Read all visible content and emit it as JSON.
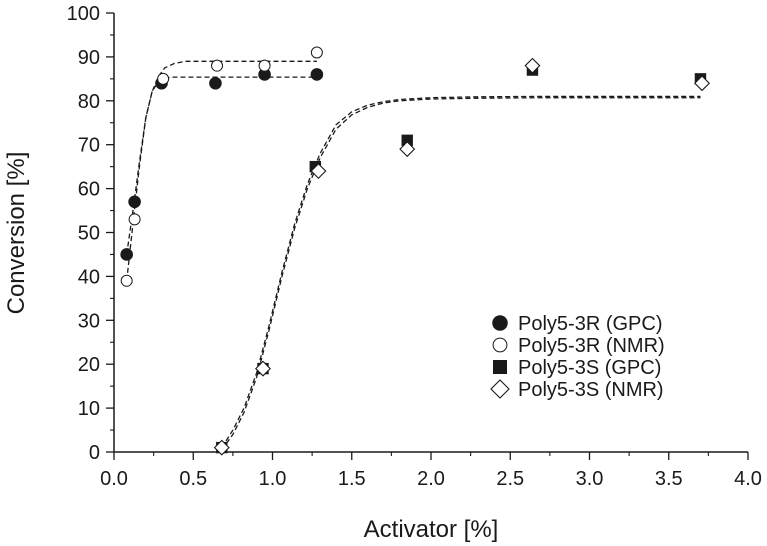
{
  "chart_data": {
    "type": "scatter",
    "title": "",
    "xlabel": "Activator [%]",
    "ylabel": "Conversion [%]",
    "xlim": [
      0.0,
      4.0
    ],
    "ylim": [
      0,
      100
    ],
    "xticks": [
      "0.0",
      "0.5",
      "1.0",
      "1.5",
      "2.0",
      "2.5",
      "3.0",
      "3.5",
      "4.0"
    ],
    "yticks": [
      "0",
      "10",
      "20",
      "30",
      "40",
      "50",
      "60",
      "70",
      "80",
      "90",
      "100"
    ],
    "grid": false,
    "legend_position": "bottom-right",
    "series": [
      {
        "name": "Poly5-3R (GPC)",
        "marker": "filled-circle",
        "x": [
          0.08,
          0.13,
          0.3,
          0.64,
          0.95,
          1.28
        ],
        "y": [
          45,
          57,
          84,
          84,
          86,
          86
        ]
      },
      {
        "name": "Poly5-3R (NMR)",
        "marker": "open-circle",
        "x": [
          0.08,
          0.13,
          0.31,
          0.65,
          0.95,
          1.28
        ],
        "y": [
          39,
          53,
          85,
          88,
          88,
          91
        ]
      },
      {
        "name": "Poly5-3S (GPC)",
        "marker": "filled-square",
        "x": [
          0.68,
          0.94,
          1.27,
          1.85,
          2.64,
          3.7
        ],
        "y": [
          1,
          19,
          65,
          71,
          87,
          85
        ]
      },
      {
        "name": "Poly5-3S (NMR)",
        "marker": "open-diamond",
        "x": [
          0.68,
          0.94,
          1.29,
          1.85,
          2.64,
          3.71
        ],
        "y": [
          1,
          19,
          64,
          69,
          88,
          84
        ]
      }
    ],
    "fit_curves": [
      {
        "style": "dashed",
        "x": [
          0.08,
          0.12,
          0.16,
          0.2,
          0.24,
          0.28,
          0.32,
          0.38,
          0.45,
          0.55,
          0.7,
          0.9,
          1.28
        ],
        "y": [
          45,
          55,
          66,
          76,
          82,
          84.5,
          85.2,
          85.4,
          85.4,
          85.4,
          85.4,
          85.4,
          85.4
        ]
      },
      {
        "style": "dashed",
        "x": [
          0.08,
          0.12,
          0.16,
          0.2,
          0.24,
          0.28,
          0.32,
          0.38,
          0.45,
          0.55,
          0.7,
          0.9,
          1.28
        ],
        "y": [
          39,
          52,
          65,
          76,
          82,
          85.5,
          87.5,
          88.5,
          89,
          89,
          89,
          89,
          89
        ]
      },
      {
        "style": "dashed",
        "x": [
          0.68,
          0.75,
          0.82,
          0.9,
          0.98,
          1.06,
          1.14,
          1.22,
          1.3,
          1.4,
          1.5,
          1.6,
          1.7,
          1.8,
          2.0,
          2.3,
          2.7,
          3.1,
          3.7
        ],
        "y": [
          1,
          5,
          10,
          18,
          29,
          41,
          52,
          61,
          68,
          74.5,
          77.5,
          79,
          79.8,
          80.3,
          80.7,
          80.9,
          81,
          81,
          81
        ]
      },
      {
        "style": "dashed",
        "x": [
          0.68,
          0.75,
          0.82,
          0.9,
          0.98,
          1.06,
          1.14,
          1.22,
          1.3,
          1.4,
          1.5,
          1.6,
          1.7,
          1.8,
          2.0,
          2.3,
          2.7,
          3.1,
          3.7
        ],
        "y": [
          0.5,
          4,
          9,
          17,
          28,
          40,
          51,
          60,
          67,
          73.5,
          76.8,
          78.5,
          79.5,
          80,
          80.4,
          80.6,
          80.7,
          80.7,
          80.7
        ]
      }
    ]
  }
}
